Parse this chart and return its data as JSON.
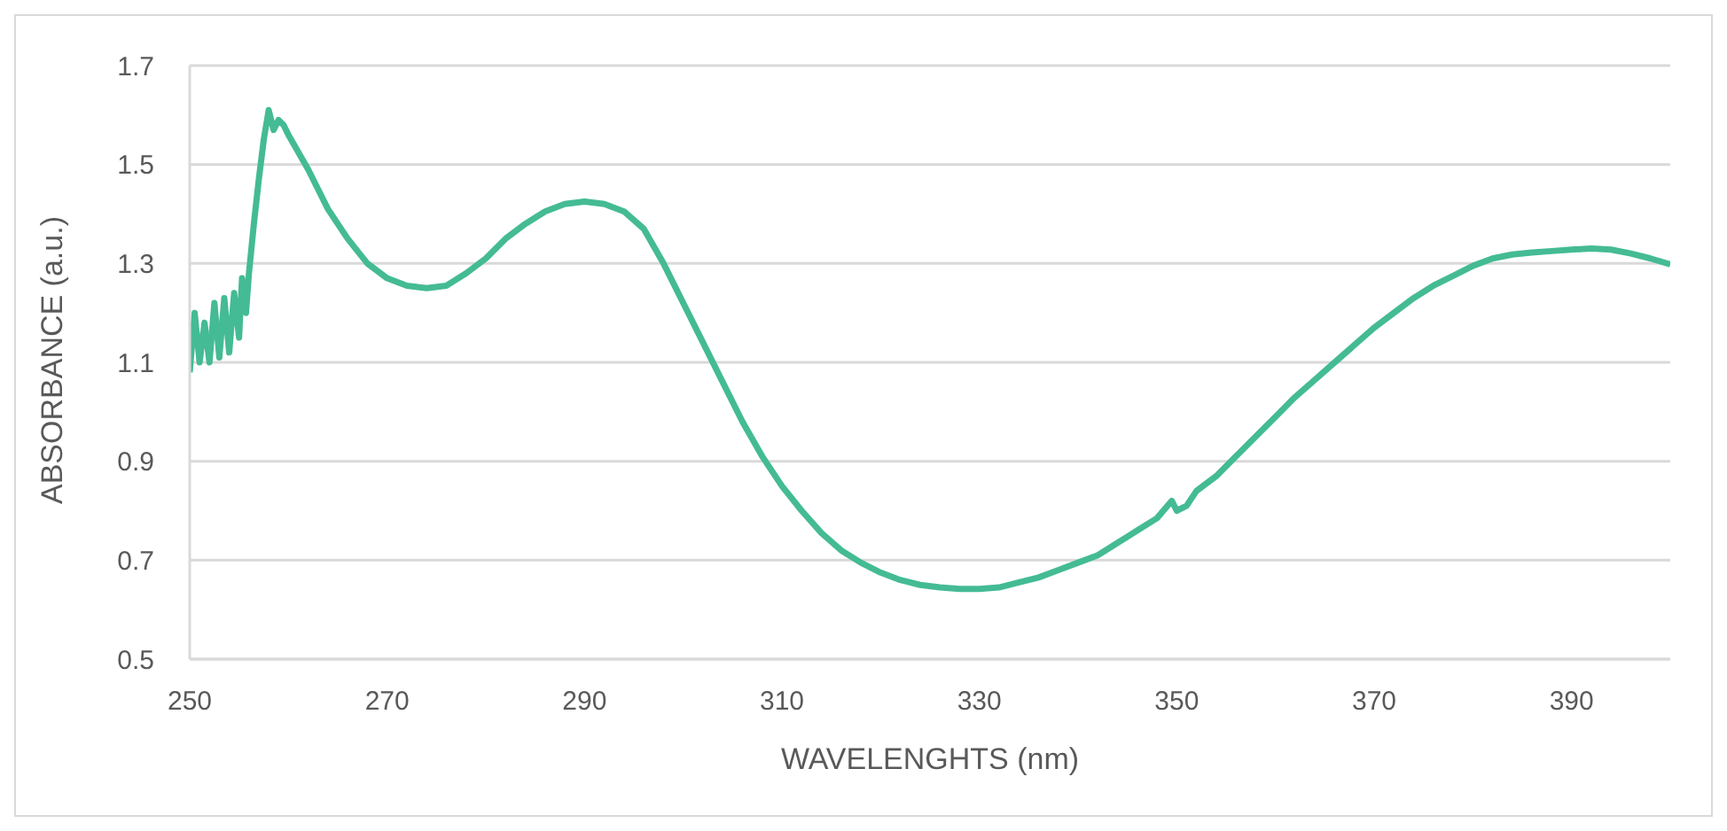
{
  "chart_data": {
    "type": "line",
    "xlabel": "WAVELENGHTS (nm)",
    "ylabel": "ABSORBANCE (a.u.)",
    "xlim": [
      250,
      400
    ],
    "xticks": [
      250,
      270,
      290,
      310,
      330,
      350,
      370,
      390
    ],
    "ylim": [
      0.5,
      1.7
    ],
    "yticks": [
      0.5,
      0.7,
      0.9,
      1.1,
      1.3,
      1.5,
      1.7
    ],
    "grid": "y",
    "legend": false,
    "marker": "none",
    "line_style": "solid",
    "series": [
      {
        "color": "#44bb94",
        "x": [
          250,
          250.5,
          251,
          251.5,
          252,
          252.5,
          253,
          253.5,
          254,
          254.5,
          255,
          255.3,
          255.7,
          256,
          256.5,
          257,
          257.5,
          258,
          258.5,
          259,
          259.5,
          260,
          262,
          264,
          266,
          268,
          270,
          272,
          274,
          276,
          278,
          280,
          282,
          284,
          286,
          288,
          290,
          292,
          294,
          296,
          298,
          300,
          302,
          304,
          306,
          308,
          310,
          312,
          314,
          316,
          318,
          320,
          322,
          324,
          326,
          328,
          330,
          332,
          334,
          336,
          338,
          340,
          342,
          344,
          346,
          348,
          349.5,
          350,
          351,
          352,
          354,
          356,
          358,
          360,
          362,
          364,
          366,
          368,
          370,
          372,
          374,
          376,
          378,
          380,
          382,
          384,
          386,
          388,
          390,
          392,
          394,
          396,
          398,
          400
        ],
        "values": [
          1.08,
          1.2,
          1.1,
          1.18,
          1.1,
          1.22,
          1.11,
          1.23,
          1.12,
          1.24,
          1.15,
          1.27,
          1.2,
          1.28,
          1.38,
          1.47,
          1.55,
          1.61,
          1.57,
          1.59,
          1.58,
          1.56,
          1.49,
          1.41,
          1.35,
          1.3,
          1.27,
          1.255,
          1.25,
          1.255,
          1.28,
          1.31,
          1.35,
          1.38,
          1.405,
          1.42,
          1.425,
          1.42,
          1.405,
          1.37,
          1.3,
          1.22,
          1.14,
          1.06,
          0.98,
          0.91,
          0.85,
          0.8,
          0.755,
          0.72,
          0.695,
          0.675,
          0.66,
          0.65,
          0.645,
          0.642,
          0.642,
          0.645,
          0.655,
          0.665,
          0.68,
          0.695,
          0.71,
          0.735,
          0.76,
          0.785,
          0.82,
          0.8,
          0.81,
          0.84,
          0.87,
          0.91,
          0.95,
          0.99,
          1.03,
          1.065,
          1.1,
          1.135,
          1.17,
          1.2,
          1.23,
          1.255,
          1.275,
          1.295,
          1.31,
          1.318,
          1.322,
          1.325,
          1.328,
          1.33,
          1.328,
          1.32,
          1.31,
          1.298
        ]
      }
    ]
  }
}
